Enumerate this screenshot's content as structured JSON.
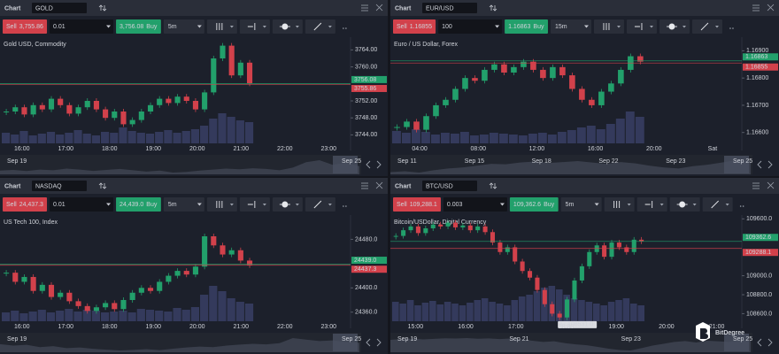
{
  "panels": [
    {
      "header_label": "Chart",
      "symbol": "GOLD",
      "sell_label": "Sell",
      "sell_price": "3,755.86",
      "quantity": "0.01",
      "buy_price": "3,756.08",
      "buy_label": "Buy",
      "timeframe": "5m",
      "instrument": "Gold USD, Commodity",
      "ylim": [
        3742,
        3767
      ],
      "yticks": [
        {
          "value": 3764,
          "label": "3764.00"
        },
        {
          "value": 3760,
          "label": "3760.00"
        },
        {
          "value": 3752,
          "label": "3752.00"
        },
        {
          "value": 3748,
          "label": "3748.00"
        },
        {
          "value": 3744,
          "label": "3744.00"
        }
      ],
      "price_tags": [
        {
          "value": 3756.08,
          "label": "3756.08",
          "color": "#22a06b"
        },
        {
          "value": 3755.86,
          "label": "3755.86",
          "color": "#d2414b"
        }
      ],
      "xticks": [
        "16:00",
        "17:00",
        "18:00",
        "19:00",
        "20:00",
        "21:00",
        "22:00",
        "23:00"
      ],
      "navigator": [
        "Sep 19",
        "Sep 25"
      ],
      "closes": [
        3749.5,
        3750.5,
        3748.8,
        3751,
        3750,
        3752.5,
        3751,
        3749,
        3750.5,
        3752,
        3750,
        3748,
        3749.5,
        3746.5,
        3747.5,
        3749.5,
        3751,
        3752.5,
        3751.5,
        3753,
        3752,
        3750,
        3754,
        3762,
        3765,
        3758,
        3761,
        3756.08
      ],
      "volumes": [
        12,
        10,
        14,
        9,
        11,
        13,
        10,
        12,
        15,
        11,
        9,
        13,
        12,
        18,
        14,
        12,
        11,
        13,
        15,
        12,
        14,
        16,
        20,
        28,
        34,
        30,
        26,
        24
      ]
    },
    {
      "header_label": "Chart",
      "symbol": "EUR/USD",
      "sell_label": "Sell",
      "sell_price": "1.16855",
      "quantity": "100",
      "buy_price": "1.16863",
      "buy_label": "Buy",
      "timeframe": "15m",
      "instrument": "Euro / US Dollar, Forex",
      "ylim": [
        1.1656,
        1.1695
      ],
      "yticks": [
        {
          "value": 1.169,
          "label": "1.16900"
        },
        {
          "value": 1.168,
          "label": "1.16800"
        },
        {
          "value": 1.167,
          "label": "1.16700"
        },
        {
          "value": 1.166,
          "label": "1.16600"
        }
      ],
      "price_tags": [
        {
          "value": 1.16863,
          "label": "1.16863",
          "color": "#22a06b"
        },
        {
          "value": 1.16855,
          "label": "1.16855",
          "color": "#d2414b"
        }
      ],
      "xticks": [
        "04:00",
        "08:00",
        "12:00",
        "16:00",
        "20:00",
        "Sat"
      ],
      "navigator": [
        "Sep 11",
        "Sep 15",
        "Sep 18",
        "Sep 22",
        "Sep 23",
        "Sep 25"
      ],
      "closes": [
        1.1662,
        1.1664,
        1.1661,
        1.1666,
        1.167,
        1.1672,
        1.1676,
        1.168,
        1.1679,
        1.1683,
        1.1685,
        1.1682,
        1.1684,
        1.1686,
        1.1683,
        1.168,
        1.1684,
        1.1681,
        1.1676,
        1.1672,
        1.167,
        1.1675,
        1.1678,
        1.1683,
        1.1688,
        1.1686
      ],
      "volumes": [
        14,
        12,
        16,
        13,
        10,
        12,
        11,
        13,
        9,
        10,
        12,
        11,
        10,
        9,
        11,
        12,
        10,
        13,
        15,
        18,
        20,
        16,
        22,
        28,
        36,
        30
      ]
    },
    {
      "header_label": "Chart",
      "symbol": "NASDAQ",
      "sell_label": "Sell",
      "sell_price": "24,437.3",
      "quantity": "0.01",
      "buy_price": "24,439.0",
      "buy_label": "Buy",
      "timeframe": "5m",
      "instrument": "US Tech 100, Index",
      "ylim": [
        24345,
        24520
      ],
      "yticks": [
        {
          "value": 24480,
          "label": "24480.0"
        },
        {
          "value": 24400,
          "label": "24400.0"
        },
        {
          "value": 24360,
          "label": "24360.0"
        }
      ],
      "price_tags": [
        {
          "value": 24439,
          "label": "24439.0",
          "color": "#22a06b"
        },
        {
          "value": 24437.3,
          "label": "24437.3",
          "color": "#d2414b"
        }
      ],
      "xticks": [
        "16:00",
        "17:00",
        "18:00",
        "19:00",
        "20:00",
        "21:00",
        "22:00",
        "23:00"
      ],
      "navigator": [
        "Sep 19",
        "Sep 25"
      ],
      "closes": [
        24425,
        24410,
        24418,
        24395,
        24405,
        24385,
        24392,
        24378,
        24370,
        24362,
        24368,
        24375,
        24365,
        24380,
        24392,
        24400,
        24395,
        24410,
        24420,
        24428,
        24422,
        24435,
        24485,
        24470,
        24455,
        24462,
        24445,
        24437.3
      ],
      "volumes": [
        10,
        12,
        9,
        11,
        13,
        10,
        12,
        14,
        11,
        13,
        12,
        10,
        11,
        12,
        10,
        14,
        13,
        12,
        11,
        15,
        13,
        16,
        30,
        40,
        34,
        26,
        22,
        20
      ]
    },
    {
      "header_label": "Chart",
      "symbol": "BTC/USD",
      "sell_label": "Sell",
      "sell_price": "109,288.1",
      "quantity": "0.003",
      "buy_price": "109,362.6",
      "buy_label": "Buy",
      "timeframe": "5m",
      "instrument": "Bitcoin/USDollar, Digital Currency",
      "ylim": [
        108520,
        109640
      ],
      "yticks": [
        {
          "value": 109600,
          "label": "109600.0"
        },
        {
          "value": 109000,
          "label": "109000.0"
        },
        {
          "value": 108800,
          "label": "108800.0"
        },
        {
          "value": 108600,
          "label": "108600.0"
        }
      ],
      "price_tags": [
        {
          "value": 109362.6,
          "label": "109362.6",
          "color": "#22a06b"
        },
        {
          "value": 109288.1,
          "label": "109288.1",
          "color": "#d2414b"
        }
      ],
      "low_label": {
        "value": 108531,
        "label": "L: 108531.0"
      },
      "xticks": [
        "15:00",
        "16:00",
        "17:00",
        "18:00",
        "19:00",
        "20:00",
        "21:00"
      ],
      "navigator": [
        "Sep 19",
        "Sep 21",
        "Sep 23",
        "Sep 25"
      ],
      "closes": [
        109420,
        109480,
        109520,
        109450,
        109500,
        109540,
        109520,
        109560,
        109510,
        109530,
        109480,
        109520,
        109460,
        109350,
        109250,
        109300,
        109150,
        109050,
        108980,
        108850,
        108700,
        108600,
        108560,
        108750,
        108950,
        109100,
        109250,
        109320,
        109200,
        109350,
        109300,
        109250,
        109380,
        109362.6
      ],
      "volumes": [
        22,
        20,
        24,
        18,
        21,
        23,
        19,
        22,
        20,
        18,
        21,
        24,
        26,
        22,
        20,
        18,
        24,
        28,
        30,
        34,
        38,
        40,
        36,
        30,
        26,
        24,
        22,
        20,
        18,
        22,
        24,
        26,
        20,
        18
      ]
    }
  ],
  "watermark": "BitDegree"
}
